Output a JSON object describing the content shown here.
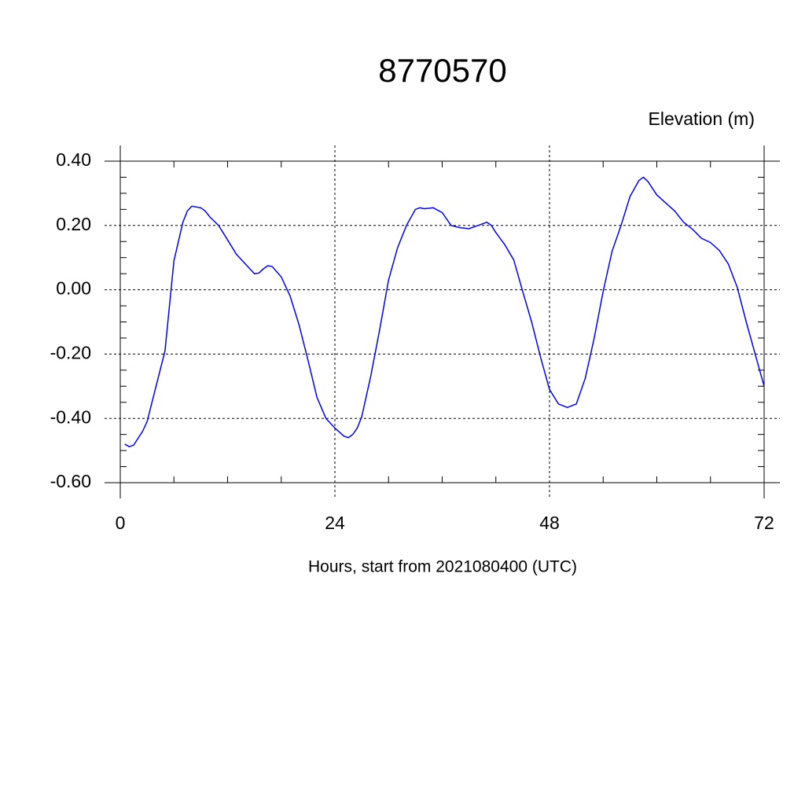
{
  "chart_data": {
    "type": "line",
    "title": "8770570",
    "y_label": "Elevation (m)",
    "x_label": "Hours, start from 2021080400 (UTC)",
    "x": [
      0.5,
      1,
      1.5,
      2.5,
      3,
      4,
      5,
      6,
      7,
      7.5,
      8,
      9,
      9.5,
      10,
      11,
      12,
      13,
      14,
      15,
      15.5,
      16,
      16.5,
      17,
      18,
      19,
      20,
      21,
      22,
      23,
      24,
      25,
      25.5,
      26,
      26.5,
      27,
      28,
      29,
      30,
      31,
      32,
      33,
      33.5,
      34,
      35,
      36,
      37,
      38,
      39,
      40,
      41,
      41.5,
      42,
      43,
      44,
      45,
      46,
      47,
      48,
      49,
      50,
      51,
      52,
      53,
      54,
      55,
      56,
      57,
      58,
      58.5,
      59,
      60,
      61,
      62,
      63,
      64,
      65,
      66,
      67,
      68,
      69,
      70,
      71,
      72
    ],
    "series": [
      {
        "color": "#0000ff",
        "values": [
          -0.48,
          -0.488,
          -0.483,
          -0.44,
          -0.41,
          -0.3,
          -0.19,
          0.09,
          0.21,
          0.245,
          0.26,
          0.255,
          0.245,
          0.227,
          0.2,
          0.155,
          0.11,
          0.08,
          0.05,
          0.052,
          0.065,
          0.075,
          0.072,
          0.04,
          -0.02,
          -0.11,
          -0.22,
          -0.335,
          -0.4,
          -0.43,
          -0.455,
          -0.46,
          -0.45,
          -0.43,
          -0.395,
          -0.27,
          -0.125,
          0.03,
          0.13,
          0.2,
          0.25,
          0.255,
          0.252,
          0.255,
          0.24,
          0.2,
          0.193,
          0.19,
          0.2,
          0.21,
          0.2,
          0.178,
          0.14,
          0.093,
          -0.005,
          -0.1,
          -0.21,
          -0.31,
          -0.355,
          -0.366,
          -0.355,
          -0.275,
          -0.15,
          -0.005,
          0.12,
          0.2,
          0.29,
          0.34,
          0.35,
          0.337,
          0.295,
          0.27,
          0.245,
          0.21,
          0.188,
          0.16,
          0.147,
          0.122,
          0.08,
          0.007,
          -0.1,
          -0.2,
          -0.3
        ]
      }
    ],
    "xlim": [
      0,
      72
    ],
    "xticks": [
      0,
      24,
      48,
      72
    ],
    "ylim": [
      -0.6,
      0.4
    ],
    "yticks": [
      {
        "value": -0.6,
        "label": "-0.60"
      },
      {
        "value": -0.4,
        "label": "-0.40"
      },
      {
        "value": -0.2,
        "label": "-0.20"
      },
      {
        "value": 0,
        "label": "0.00"
      },
      {
        "value": 0.2,
        "label": "0.20"
      },
      {
        "value": 0.4,
        "label": "0.40"
      }
    ],
    "grid": true
  }
}
